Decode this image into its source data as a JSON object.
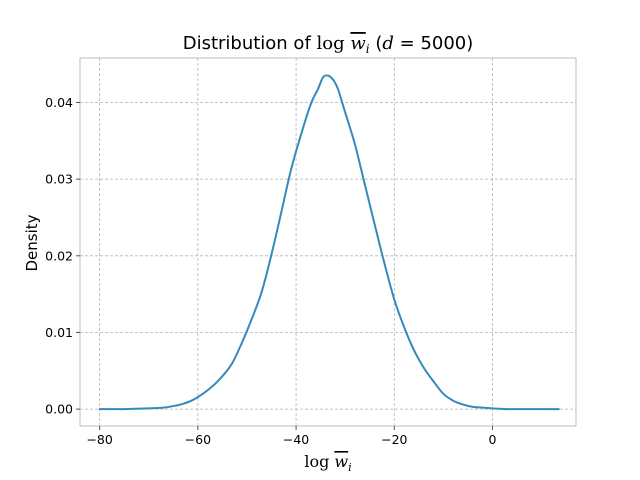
{
  "chart_data": {
    "type": "line",
    "title": {
      "prefix": "Distribution of ",
      "log": "log",
      "var": "w",
      "sub": "i",
      "open": " (",
      "d": "d",
      "eq": " = ",
      "value": "5000",
      "close": ")"
    },
    "xlabel": {
      "log": "log",
      "var": "w",
      "sub": "i"
    },
    "ylabel": "Density",
    "xlim": [
      -84,
      17
    ],
    "ylim": [
      -0.0022,
      0.0458
    ],
    "xticks": [
      -80,
      -60,
      -40,
      -20,
      0
    ],
    "xtick_labels": [
      "−80",
      "−60",
      "−40",
      "−20",
      "0"
    ],
    "yticks": [
      0.0,
      0.01,
      0.02,
      0.03,
      0.04
    ],
    "ytick_labels": [
      "0.00",
      "0.01",
      "0.02",
      "0.03",
      "0.04"
    ],
    "grid": true,
    "line_color": "#348abd",
    "series": [
      {
        "x": [
          -80,
          -75,
          -70,
          -67,
          -65,
          -63,
          -61,
          -59,
          -57,
          -55,
          -53,
          -51,
          -49,
          -47,
          -45,
          -43,
          -41,
          -39,
          -37,
          -35.5,
          -34.5,
          -33.5,
          -32.5,
          -31.5,
          -30,
          -28,
          -26,
          -24,
          -22,
          -20,
          -18,
          -16,
          -14,
          -12,
          -10,
          -8,
          -6,
          -4,
          -2,
          0,
          3,
          6,
          9,
          13.5
        ],
        "y": [
          0.0,
          0.0,
          0.0001,
          0.0002,
          0.0004,
          0.0007,
          0.0012,
          0.002,
          0.003,
          0.0043,
          0.006,
          0.0087,
          0.0118,
          0.0153,
          0.0202,
          0.0257,
          0.0313,
          0.0358,
          0.0398,
          0.0418,
          0.0433,
          0.0435,
          0.043,
          0.0418,
          0.0387,
          0.0345,
          0.0293,
          0.0241,
          0.019,
          0.0143,
          0.0107,
          0.0077,
          0.0054,
          0.0036,
          0.002,
          0.0011,
          0.0006,
          0.0003,
          0.0002,
          0.0001,
          0.0,
          0.0,
          0.0,
          0.0
        ]
      }
    ]
  }
}
